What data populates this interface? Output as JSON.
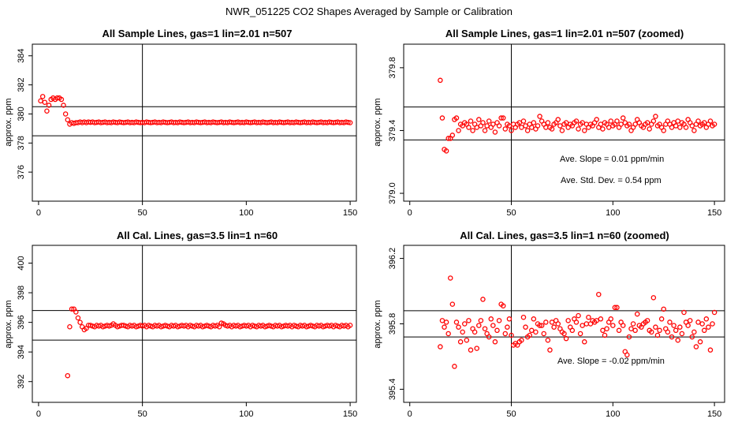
{
  "figure": {
    "title": "NWR_051225  CO2 Shapes Averaged by Sample or Calibration"
  },
  "chart_data": [
    {
      "type": "scatter",
      "title": "All Sample Lines, gas=1 lin=2.01 n=507",
      "ylabel": "approx. ppm",
      "xlim": [
        -3,
        153
      ],
      "ylim": [
        374.0,
        384.8
      ],
      "xticks": [
        0,
        50,
        100,
        150
      ],
      "yticks": [
        376,
        378,
        380,
        382,
        384
      ],
      "hlines": [
        380.5,
        378.5
      ],
      "vlines": [
        50
      ],
      "annotations": [],
      "series": [
        {
          "x_start": 1,
          "x_end": 150,
          "values": [
            380.9,
            381.2,
            380.8,
            380.2,
            380.6,
            381.0,
            381.1,
            381.0,
            381.1,
            381.1,
            381.0,
            380.6,
            380.0,
            379.6,
            379.3,
            379.4,
            379.35,
            379.4,
            379.4,
            379.45,
            379.4,
            379.45,
            379.4,
            379.45,
            379.42,
            379.45,
            379.4,
            379.42,
            379.45,
            379.4,
            379.42,
            379.45,
            379.4,
            379.42,
            379.4,
            379.45,
            379.42,
            379.4,
            379.45,
            379.42,
            379.4,
            379.42,
            379.45,
            379.4,
            379.42,
            379.4,
            379.45,
            379.42,
            379.4,
            379.42,
            379.4,
            379.45,
            379.42,
            379.4,
            379.42,
            379.45,
            379.4,
            379.42,
            379.4,
            379.45,
            379.42,
            379.4,
            379.42,
            379.45,
            379.4,
            379.42,
            379.4,
            379.45,
            379.42,
            379.4,
            379.42,
            379.45,
            379.4,
            379.42,
            379.4,
            379.45,
            379.42,
            379.4,
            379.42,
            379.45,
            379.4,
            379.42,
            379.4,
            379.45,
            379.42,
            379.4,
            379.42,
            379.45,
            379.4,
            379.42,
            379.4,
            379.45,
            379.42,
            379.4,
            379.42,
            379.45,
            379.4,
            379.42,
            379.4,
            379.45,
            379.42,
            379.4,
            379.42,
            379.45,
            379.4,
            379.42,
            379.4,
            379.45,
            379.42,
            379.4,
            379.42,
            379.45,
            379.4,
            379.42,
            379.4,
            379.45,
            379.42,
            379.4,
            379.42,
            379.45,
            379.4,
            379.42,
            379.4,
            379.45,
            379.42,
            379.4,
            379.42,
            379.45,
            379.4,
            379.42,
            379.4,
            379.45,
            379.42,
            379.4,
            379.42,
            379.45,
            379.4,
            379.42,
            379.4,
            379.45,
            379.42,
            379.4,
            379.42,
            379.45,
            379.4,
            379.42,
            379.4,
            379.45,
            379.42,
            379.4
          ]
        }
      ]
    },
    {
      "type": "scatter",
      "title": "All Sample Lines, gas=1 lin=2.01 n=507 (zoomed)",
      "ylabel": "approx. ppm",
      "xlim": [
        -3,
        155
      ],
      "ylim": [
        378.95,
        379.95
      ],
      "xticks": [
        0,
        50,
        100,
        150
      ],
      "yticks": [
        379.0,
        379.4,
        379.8
      ],
      "hlines": [
        379.55,
        379.34
      ],
      "vlines": [
        50
      ],
      "annotations": [
        "Ave. Slope =  0.01  ppm/min",
        "Ave. Std. Dev. =  0.54  ppm"
      ],
      "series": [
        {
          "x_start": 15,
          "x_end": 150,
          "values": [
            379.72,
            379.48,
            379.28,
            379.27,
            379.35,
            379.35,
            379.37,
            379.47,
            379.48,
            379.4,
            379.44,
            379.43,
            379.45,
            379.44,
            379.42,
            379.46,
            379.4,
            379.44,
            379.42,
            379.47,
            379.43,
            379.45,
            379.4,
            379.43,
            379.46,
            379.42,
            379.44,
            379.39,
            379.45,
            379.43,
            379.48,
            379.48,
            379.41,
            379.44,
            379.43,
            379.4,
            379.44,
            379.42,
            379.44,
            379.45,
            379.42,
            379.46,
            379.43,
            379.4,
            379.44,
            379.42,
            379.45,
            379.41,
            379.43,
            379.49,
            379.46,
            379.44,
            379.42,
            379.45,
            379.42,
            379.41,
            379.44,
            379.45,
            379.47,
            379.43,
            379.4,
            379.44,
            379.45,
            379.42,
            379.44,
            379.43,
            379.45,
            379.46,
            379.41,
            379.44,
            379.45,
            379.4,
            379.44,
            379.42,
            379.44,
            379.43,
            379.45,
            379.47,
            379.42,
            379.44,
            379.41,
            379.45,
            379.44,
            379.42,
            379.46,
            379.43,
            379.44,
            379.46,
            379.42,
            379.44,
            379.48,
            379.45,
            379.43,
            379.44,
            379.4,
            379.42,
            379.44,
            379.47,
            379.45,
            379.43,
            379.42,
            379.44,
            379.45,
            379.41,
            379.44,
            379.46,
            379.49,
            379.43,
            379.44,
            379.42,
            379.4,
            379.44,
            379.46,
            379.44,
            379.42,
            379.45,
            379.43,
            379.46,
            379.42,
            379.45,
            379.44,
            379.42,
            379.47,
            379.45,
            379.43,
            379.4,
            379.44,
            379.46,
            379.43,
            379.44,
            379.45,
            379.42,
            379.44,
            379.46,
            379.43,
            379.44
          ]
        }
      ]
    },
    {
      "type": "scatter",
      "title": "All Cal. Lines, gas=3.5 lin=1 n=60",
      "ylabel": "approx. ppm",
      "xlim": [
        -3,
        153
      ],
      "ylim": [
        390.6,
        401.2
      ],
      "xticks": [
        0,
        50,
        100,
        150
      ],
      "yticks": [
        392,
        394,
        396,
        398,
        400
      ],
      "hlines": [
        396.8,
        394.8
      ],
      "vlines": [
        50
      ],
      "annotations": [],
      "series": [
        {
          "x_start": 14,
          "x_end": 150,
          "values": [
            392.4,
            395.7,
            396.9,
            396.9,
            396.7,
            396.3,
            396.0,
            395.7,
            395.5,
            395.6,
            395.8,
            395.8,
            395.75,
            395.7,
            395.8,
            395.75,
            395.8,
            395.7,
            395.75,
            395.8,
            395.75,
            395.8,
            395.9,
            395.8,
            395.7,
            395.75,
            395.8,
            395.8,
            395.75,
            395.7,
            395.8,
            395.75,
            395.8,
            395.7,
            395.75,
            395.8,
            395.75,
            395.8,
            395.7,
            395.8,
            395.75,
            395.7,
            395.8,
            395.75,
            395.8,
            395.7,
            395.75,
            395.8,
            395.75,
            395.7,
            395.8,
            395.75,
            395.8,
            395.7,
            395.75,
            395.8,
            395.75,
            395.8,
            395.7,
            395.8,
            395.75,
            395.7,
            395.8,
            395.75,
            395.8,
            395.7,
            395.75,
            395.8,
            395.75,
            395.7,
            395.8,
            395.75,
            395.8,
            395.7,
            395.95,
            395.9,
            395.8,
            395.75,
            395.8,
            395.7,
            395.8,
            395.75,
            395.8,
            395.7,
            395.75,
            395.8,
            395.75,
            395.8,
            395.7,
            395.8,
            395.75,
            395.7,
            395.8,
            395.75,
            395.8,
            395.7,
            395.75,
            395.8,
            395.75,
            395.7,
            395.8,
            395.75,
            395.8,
            395.7,
            395.75,
            395.8,
            395.75,
            395.8,
            395.7,
            395.8,
            395.75,
            395.7,
            395.8,
            395.75,
            395.8,
            395.7,
            395.75,
            395.8,
            395.75,
            395.7,
            395.8,
            395.75,
            395.8,
            395.7,
            395.75,
            395.8,
            395.75,
            395.8,
            395.7,
            395.8,
            395.75,
            395.7,
            395.8,
            395.75,
            395.8,
            395.7,
            395.8
          ]
        }
      ]
    },
    {
      "type": "scatter",
      "title": "All Cal. Lines, gas=3.5 lin=1 n=60 (zoomed)",
      "ylabel": "approx. ppm",
      "xlim": [
        -3,
        155
      ],
      "ylim": [
        395.32,
        396.28
      ],
      "xticks": [
        0,
        50,
        100,
        150
      ],
      "yticks": [
        395.4,
        395.8,
        396.2
      ],
      "hlines": [
        395.88,
        395.72
      ],
      "vlines": [
        50
      ],
      "annotations": [
        "Ave. Slope =  -0.02  ppm/min"
      ],
      "series": [
        {
          "x_start": 15,
          "x_end": 150,
          "values": [
            395.66,
            395.82,
            395.78,
            395.81,
            395.74,
            396.08,
            395.92,
            395.54,
            395.81,
            395.78,
            395.69,
            395.75,
            395.8,
            395.7,
            395.82,
            395.64,
            395.77,
            395.75,
            395.65,
            395.79,
            395.82,
            395.95,
            395.77,
            395.74,
            395.72,
            395.83,
            395.79,
            395.69,
            395.76,
            395.82,
            395.92,
            395.91,
            395.74,
            395.78,
            395.83,
            395.73,
            395.67,
            395.68,
            395.67,
            395.69,
            395.7,
            395.84,
            395.78,
            395.72,
            395.73,
            395.76,
            395.83,
            395.75,
            395.8,
            395.79,
            395.79,
            395.74,
            395.81,
            395.7,
            395.64,
            395.81,
            395.78,
            395.82,
            395.8,
            395.77,
            395.75,
            395.74,
            395.71,
            395.82,
            395.78,
            395.76,
            395.83,
            395.81,
            395.85,
            395.74,
            395.79,
            395.69,
            395.8,
            395.84,
            395.8,
            395.82,
            395.81,
            395.82,
            395.98,
            395.83,
            395.76,
            395.73,
            395.77,
            395.81,
            395.83,
            395.79,
            395.9,
            395.9,
            395.76,
            395.81,
            395.79,
            395.63,
            395.61,
            395.72,
            395.77,
            395.8,
            395.76,
            395.86,
            395.79,
            395.78,
            395.8,
            395.81,
            395.82,
            395.76,
            395.75,
            395.96,
            395.78,
            395.73,
            395.76,
            395.83,
            395.89,
            395.77,
            395.75,
            395.81,
            395.72,
            395.79,
            395.76,
            395.7,
            395.78,
            395.74,
            395.87,
            395.81,
            395.79,
            395.82,
            395.72,
            395.75,
            395.66,
            395.81,
            395.69,
            395.8,
            395.76,
            395.83,
            395.78,
            395.64,
            395.8,
            395.87
          ]
        }
      ]
    }
  ]
}
